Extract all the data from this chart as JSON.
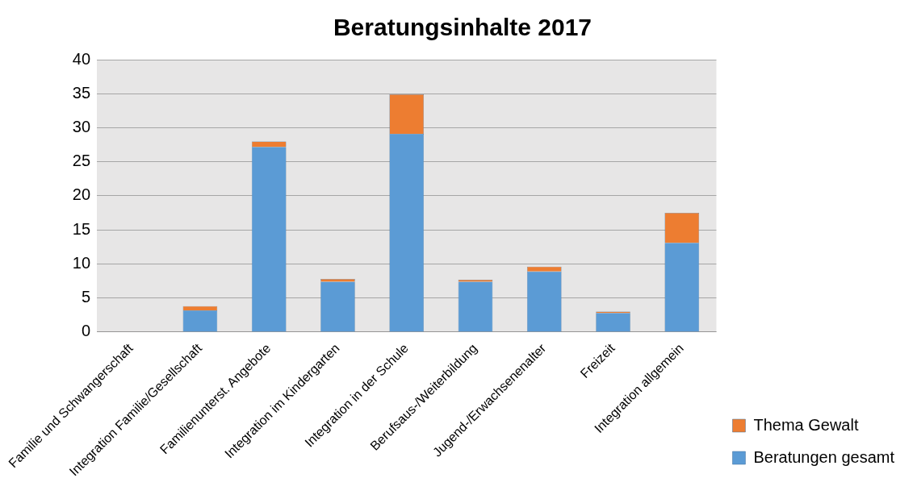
{
  "chart_data": {
    "type": "bar",
    "title": "Beratungsinhalte 2017",
    "categories": [
      "Familie und Schwangerschaft",
      "Integration Familie/Gesellschaft",
      "Familienunterst. Angebote",
      "Integration im Kindergarten",
      "Integration in der Schule",
      "Berufsaus-/Weiterbildung",
      "Jugend-/Erwachsenenalter",
      "Freizeit",
      "Integration allgemein"
    ],
    "series": [
      {
        "name": "Beratungen gesamt",
        "color": "#5b9bd5",
        "values": [
          0,
          3.2,
          27.2,
          7.4,
          29.1,
          7.4,
          8.9,
          2.8,
          13.1
        ]
      },
      {
        "name": "Thema Gewalt",
        "color": "#ed7d31",
        "values": [
          0,
          0.6,
          0.8,
          0.4,
          5.8,
          0.3,
          0.7,
          0.2,
          4.4
        ]
      }
    ],
    "stacked": true,
    "ylim": [
      0,
      40
    ],
    "yticks": [
      0,
      5,
      10,
      15,
      20,
      25,
      30,
      35,
      40
    ],
    "grid": "y",
    "legend": "bottom right"
  }
}
